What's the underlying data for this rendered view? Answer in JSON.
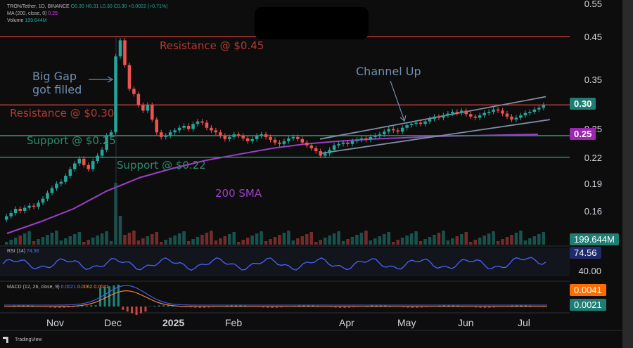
{
  "legend": {
    "symbol": "TRON/Tether, 1D, BINANCE",
    "ohlc": "O0.30 H0.31 L0.30 C0.30 +0.0022 (+0.71%)",
    "ma": "MA (200, close, 0)",
    "ma_value": "0.25",
    "volume_label": "Volume",
    "volume_value": "199.644M"
  },
  "annotations": {
    "resistance_045": "Resistance @ $0.45",
    "resistance_030": "Resistance @ $0.30",
    "support_025": "Support @ $0.25",
    "support_022": "Support @ $0.22",
    "big_gap_line1": "Big Gap",
    "big_gap_line2": "got filled",
    "channel_up": "Channel Up",
    "sma200": "200 SMA"
  },
  "price_axis": [
    "0.55",
    "0.45",
    "0.35",
    "0.30",
    "0.25",
    "0.22",
    "0.19",
    "0.16"
  ],
  "badges": {
    "last_price": "0.30",
    "ma_price": "0.25",
    "volume": "199.644M",
    "rsi": "74.56",
    "rsi_level": "40.00",
    "macd_signal": "0.0041",
    "macd_line": "0.0021"
  },
  "rsi": {
    "label": "RSI (14)",
    "value": "74.56"
  },
  "macd": {
    "label": "MACD (12, 26, close, 9)",
    "v1": "0.0021",
    "v2": "0.0062",
    "v3": "0.0041"
  },
  "time_axis": [
    "Nov",
    "Dec",
    "2025",
    "Feb",
    "Apr",
    "May",
    "Jun",
    "Jul"
  ],
  "branding": "TradingView",
  "colors": {
    "up": "#26a69a",
    "down": "#ef5350",
    "resistance": "#b33a35",
    "support": "#2e8b6e",
    "channel": "#7f8fa6",
    "sma": "#9b3fc9",
    "rsi": "#4a62ff"
  },
  "chart_data": {
    "type": "candlestick",
    "symbol": "TRON/Tether",
    "timeframe": "1D",
    "y_scale": "log",
    "close_series": [
      0.155,
      0.158,
      0.162,
      0.16,
      0.163,
      0.165,
      0.164,
      0.168,
      0.172,
      0.178,
      0.183,
      0.188,
      0.19,
      0.197,
      0.205,
      0.212,
      0.218,
      0.21,
      0.205,
      0.215,
      0.222,
      0.23,
      0.25,
      0.255,
      0.4,
      0.44,
      0.38,
      0.33,
      0.32,
      0.3,
      0.29,
      0.3,
      0.275,
      0.255,
      0.248,
      0.25,
      0.255,
      0.258,
      0.262,
      0.265,
      0.26,
      0.268,
      0.272,
      0.27,
      0.262,
      0.258,
      0.255,
      0.25,
      0.245,
      0.248,
      0.252,
      0.25,
      0.246,
      0.242,
      0.245,
      0.25,
      0.252,
      0.248,
      0.244,
      0.24,
      0.238,
      0.242,
      0.246,
      0.248,
      0.245,
      0.24,
      0.236,
      0.232,
      0.228,
      0.222,
      0.225,
      0.23,
      0.236,
      0.238,
      0.24,
      0.238,
      0.242,
      0.244,
      0.246,
      0.244,
      0.248,
      0.25,
      0.252,
      0.256,
      0.26,
      0.258,
      0.256,
      0.262,
      0.266,
      0.268,
      0.27,
      0.268,
      0.272,
      0.276,
      0.28,
      0.278,
      0.282,
      0.285,
      0.288,
      0.286,
      0.29,
      0.284,
      0.28,
      0.278,
      0.282,
      0.286,
      0.288,
      0.292,
      0.29,
      0.285,
      0.28,
      0.275,
      0.278,
      0.282,
      0.286,
      0.288,
      0.292,
      0.295,
      0.3
    ],
    "sma200_series": [
      0.14,
      0.15,
      0.162,
      0.18,
      0.195,
      0.206,
      0.216,
      0.224,
      0.232,
      0.238,
      0.242,
      0.245,
      0.247,
      0.249,
      0.25,
      0.251,
      0.252
    ],
    "horizontal_levels": [
      0.45,
      0.3,
      0.25,
      0.22
    ],
    "channel_up": {
      "lower": [
        0.225,
        0.275
      ],
      "upper": [
        0.245,
        0.315
      ]
    }
  }
}
